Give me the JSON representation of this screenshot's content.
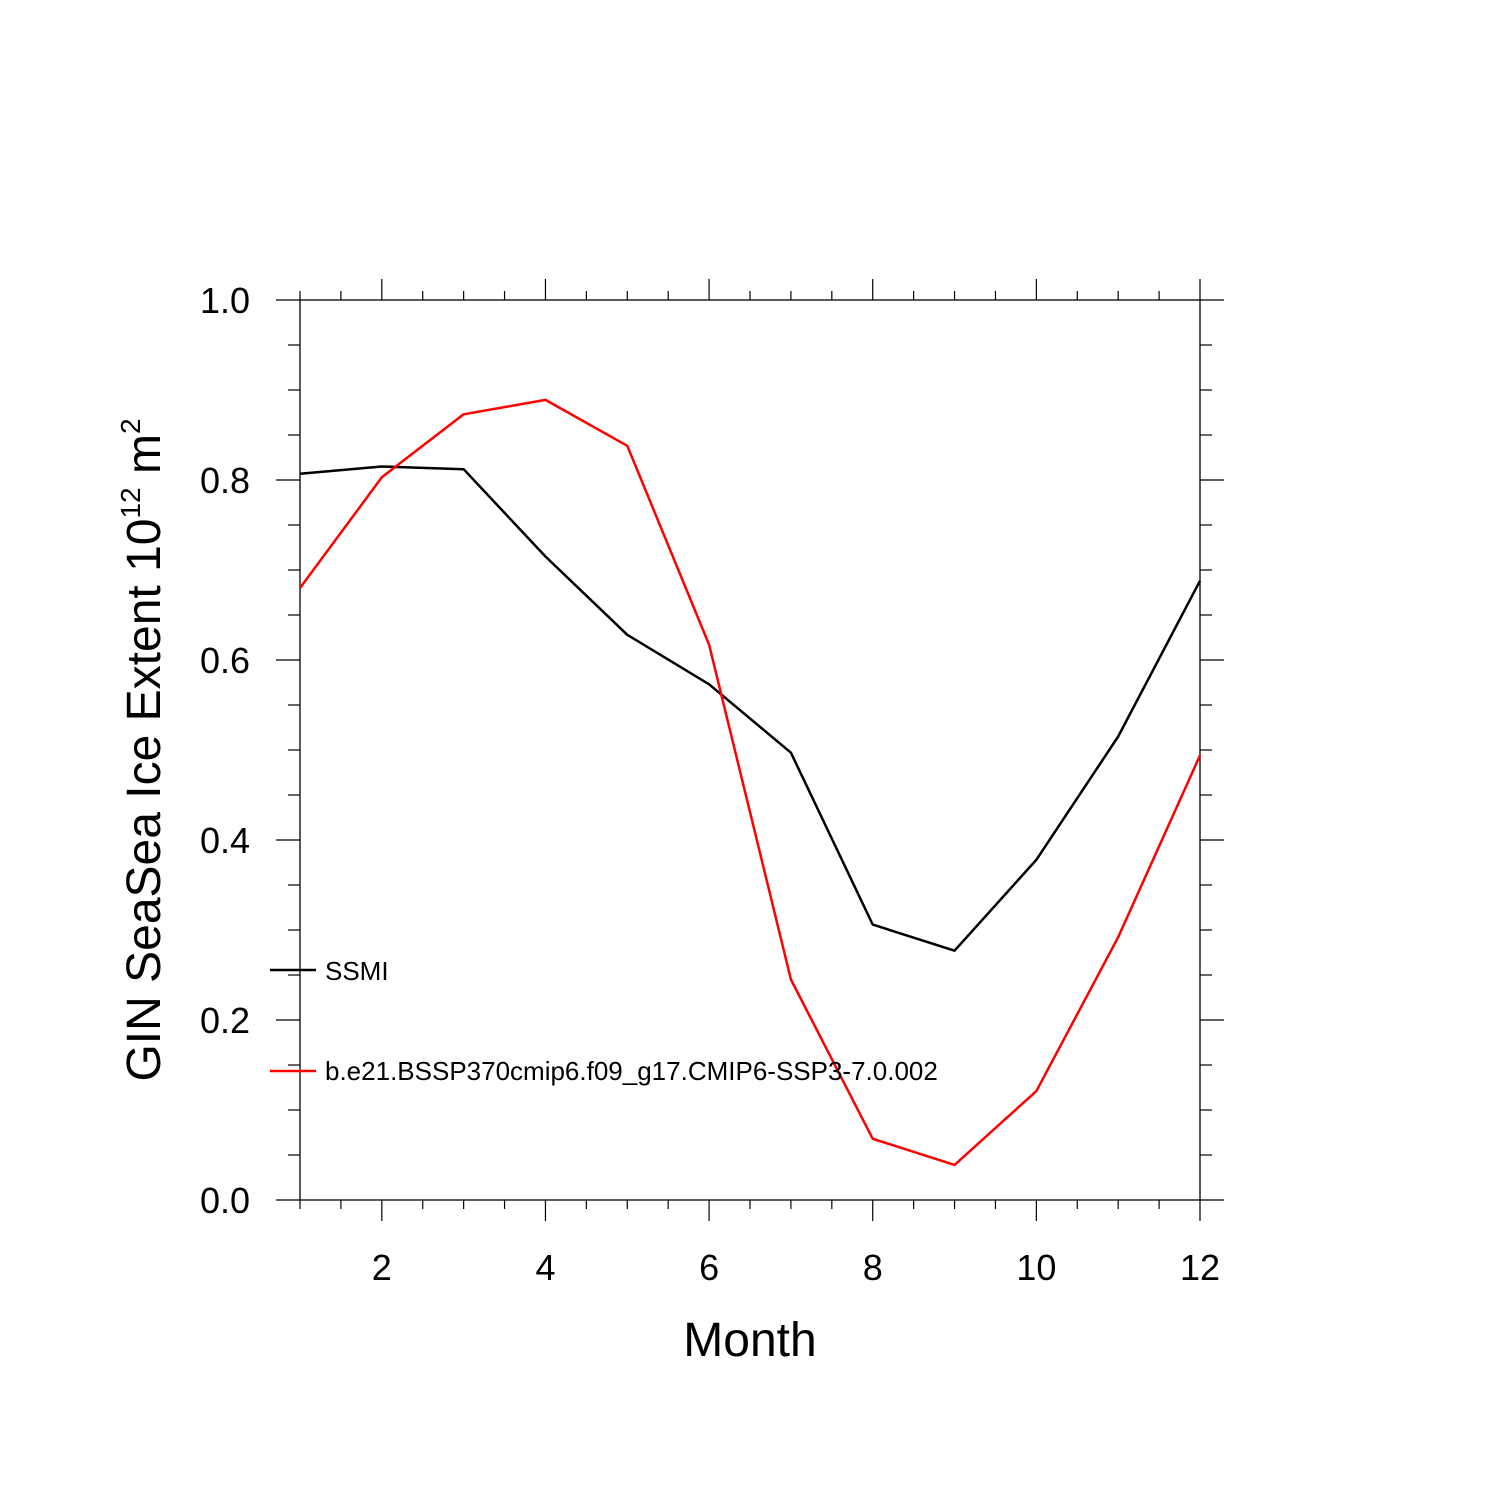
{
  "chart_data": {
    "type": "line",
    "xlabel": "Month",
    "ylabel_main": "GIN SeaSea Ice Extent 10",
    "ylabel_exp": "12",
    "ylabel_unit": " m",
    "ylabel_unit_exp": "2",
    "xlim": [
      1,
      12
    ],
    "ylim": [
      0.0,
      1.0
    ],
    "x_ticks": [
      2,
      4,
      6,
      8,
      10,
      12
    ],
    "y_ticks": [
      "0.0",
      "0.2",
      "0.4",
      "0.6",
      "0.8",
      "1.0"
    ],
    "grid": false,
    "legend_position": "lower-left",
    "x": [
      1,
      2,
      3,
      4,
      5,
      6,
      7,
      8,
      9,
      10,
      11,
      12
    ],
    "series": [
      {
        "name": "SSMI",
        "color": "#000000",
        "values": [
          0.807,
          0.815,
          0.812,
          0.715,
          0.628,
          0.573,
          0.497,
          0.306,
          0.277,
          0.378,
          0.515,
          0.688
        ]
      },
      {
        "name": "b.e21.BSSP370cmip6.f09_g17.CMIP6-SSP3-7.0.002",
        "color": "#ff0000",
        "values": [
          0.68,
          0.803,
          0.873,
          0.889,
          0.838,
          0.617,
          0.245,
          0.068,
          0.039,
          0.121,
          0.292,
          0.494
        ]
      }
    ]
  }
}
